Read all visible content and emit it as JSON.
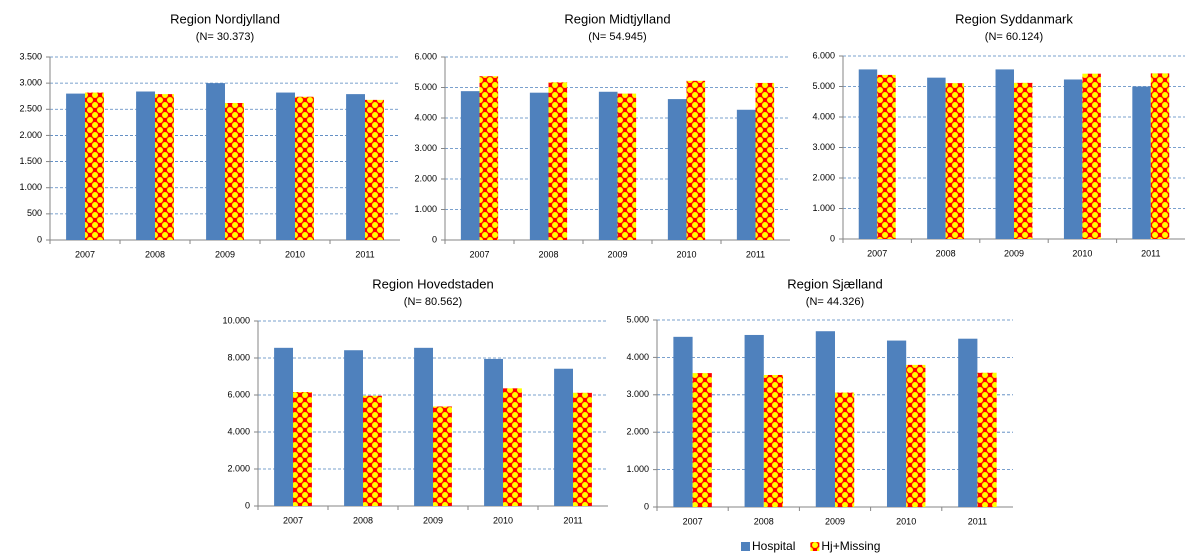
{
  "chart_data": [
    {
      "type": "bar",
      "title": "Region Nordjylland",
      "subtitle": "(N= 30.373)",
      "categories": [
        "2007",
        "2008",
        "2009",
        "2010",
        "2011"
      ],
      "series": [
        {
          "color": "#4f81bd",
          "values": [
            2800,
            2840,
            3000,
            2820,
            2790
          ]
        },
        {
          "color": "#ff0000",
          "pattern_color": "#ffff00",
          "values": [
            2820,
            2790,
            2620,
            2740,
            2680
          ]
        }
      ],
      "ylim": [
        0,
        3500
      ],
      "yticks": [
        0,
        {
          "value": 500,
          "label": "500"
        },
        {
          "value": 1000,
          "label": "1.000"
        },
        {
          "value": 1500,
          "label": "1.500"
        },
        {
          "value": 2000,
          "label": "2.000"
        },
        {
          "value": 2500,
          "label": "2.500"
        },
        {
          "value": 3000,
          "label": "3.000"
        },
        {
          "value": 3500,
          "label": "3.500"
        }
      ],
      "grid": true
    },
    {
      "type": "bar",
      "title": "Region Midtjylland",
      "subtitle": "(N= 54.945)",
      "categories": [
        "2007",
        "2008",
        "2009",
        "2010",
        "2011"
      ],
      "series": [
        {
          "color": "#4f81bd",
          "values": [
            4880,
            4830,
            4860,
            4620,
            4270
          ]
        },
        {
          "color": "#ff0000",
          "pattern_color": "#ffff00",
          "values": [
            5370,
            5170,
            4800,
            5220,
            5150
          ]
        }
      ],
      "ylim": [
        0,
        6000
      ],
      "yticks": [
        0,
        {
          "value": 1000,
          "label": "1.000"
        },
        {
          "value": 2000,
          "label": "2.000"
        },
        {
          "value": 3000,
          "label": "3.000"
        },
        {
          "value": 4000,
          "label": "4.000"
        },
        {
          "value": 5000,
          "label": "5.000"
        },
        {
          "value": 6000,
          "label": "6.000"
        }
      ],
      "grid": true
    },
    {
      "type": "bar",
      "title": "Region Syddanmark",
      "subtitle": "(N= 60.124)",
      "categories": [
        "2007",
        "2008",
        "2009",
        "2010",
        "2011"
      ],
      "series": [
        {
          "color": "#4f81bd",
          "values": [
            5560,
            5290,
            5560,
            5230,
            5000
          ]
        },
        {
          "color": "#ff0000",
          "pattern_color": "#ffff00",
          "values": [
            5380,
            5110,
            5120,
            5420,
            5430
          ]
        }
      ],
      "ylim": [
        0,
        6000
      ],
      "yticks": [
        0,
        {
          "value": 1000,
          "label": "1.000"
        },
        {
          "value": 2000,
          "label": "2.000"
        },
        {
          "value": 3000,
          "label": "3.000"
        },
        {
          "value": 4000,
          "label": "4.000"
        },
        {
          "value": 5000,
          "label": "5.000"
        },
        {
          "value": 6000,
          "label": "6.000"
        }
      ],
      "grid": true
    },
    {
      "type": "bar",
      "title": "Region Hovedstaden",
      "subtitle": "(N= 80.562)",
      "categories": [
        "2007",
        "2008",
        "2009",
        "2010",
        "2011"
      ],
      "series": [
        {
          "color": "#4f81bd",
          "values": [
            8550,
            8420,
            8550,
            7950,
            7420
          ]
        },
        {
          "color": "#ff0000",
          "pattern_color": "#ffff00",
          "values": [
            6160,
            5960,
            5380,
            6360,
            6120
          ]
        }
      ],
      "ylim": [
        0,
        10000
      ],
      "yticks": [
        0,
        {
          "value": 2000,
          "label": "2.000"
        },
        {
          "value": 4000,
          "label": "4.000"
        },
        {
          "value": 6000,
          "label": "6.000"
        },
        {
          "value": 8000,
          "label": "8.000"
        },
        {
          "value": 10000,
          "label": "10.000"
        }
      ],
      "grid": true
    },
    {
      "type": "bar",
      "title": "Region Sjælland",
      "subtitle": "(N= 44.326)",
      "categories": [
        "2007",
        "2008",
        "2009",
        "2010",
        "2011"
      ],
      "series": [
        {
          "name": "Hospital",
          "color": "#4f81bd",
          "values": [
            4550,
            4600,
            4700,
            4450,
            4500
          ]
        },
        {
          "name": "Hj+Missing",
          "color": "#ff0000",
          "pattern_color": "#ffff00",
          "values": [
            3580,
            3530,
            3060,
            3800,
            3590
          ]
        }
      ],
      "ylim": [
        0,
        5000
      ],
      "yticks": [
        0,
        {
          "value": 1000,
          "label": "1.000"
        },
        {
          "value": 2000,
          "label": "2.000"
        },
        {
          "value": 3000,
          "label": "3.000"
        },
        {
          "value": 4000,
          "label": "4.000"
        },
        {
          "value": 5000,
          "label": "5.000"
        }
      ],
      "grid": true,
      "legend": "bottom"
    }
  ]
}
